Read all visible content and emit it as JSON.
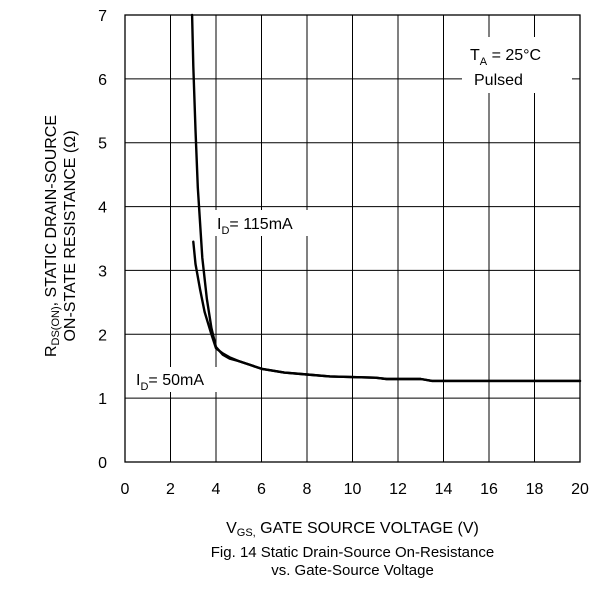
{
  "chart_data": {
    "type": "line",
    "x_label": {
      "main": "V",
      "sub": "GS,",
      "rest": " GATE SOURCE VOLTAGE (V)"
    },
    "y_label": {
      "line1_main": "R",
      "line1_sub": "DS(ON)",
      "line1_rest": ", STATIC DRAIN-SOURCE",
      "line2": "ON-STATE RESISTANCE (Ω)"
    },
    "caption": [
      "Fig. 14  Static Drain-Source On-Resistance",
      "vs. Gate-Source Voltage"
    ],
    "xlim": [
      0,
      20
    ],
    "ylim": [
      0,
      7
    ],
    "x_ticks": [
      "0",
      "2",
      "4",
      "6",
      "8",
      "10",
      "12",
      "14",
      "16",
      "18",
      "20"
    ],
    "y_ticks": [
      "0",
      "1",
      "2",
      "3",
      "4",
      "5",
      "6",
      "7"
    ],
    "grid": true,
    "annotations": {
      "condition_line1_main": "T",
      "condition_line1_sub": "A",
      "condition_line1_rest": " = 25°C",
      "condition_line2": "Pulsed"
    },
    "series": [
      {
        "name_main": "I",
        "name_sub": "D",
        "name_rest": "= 115mA",
        "x": [
          2.95,
          3.0,
          3.1,
          3.2,
          3.4,
          3.6,
          3.8,
          4.0,
          4.3,
          4.6,
          5.0,
          5.5,
          6.0,
          7.0,
          8.0,
          9.0,
          10.0,
          11.0,
          11.5,
          12.0,
          13.0,
          13.5,
          14.0,
          16.0,
          18.0,
          20.0
        ],
        "y": [
          7.0,
          6.2,
          5.2,
          4.3,
          3.2,
          2.55,
          2.1,
          1.8,
          1.68,
          1.62,
          1.58,
          1.52,
          1.46,
          1.4,
          1.37,
          1.34,
          1.33,
          1.32,
          1.3,
          1.3,
          1.3,
          1.27,
          1.27,
          1.27,
          1.27,
          1.27
        ]
      },
      {
        "name_main": "I",
        "name_sub": "D",
        "name_rest": "= 50mA",
        "x": [
          3.0,
          3.1,
          3.3,
          3.5,
          3.8,
          4.0,
          4.3,
          4.6,
          5.0,
          5.5,
          6.0,
          7.0,
          8.0,
          9.0,
          10.0,
          11.0,
          11.5,
          12.0,
          13.0,
          13.5,
          14.0,
          16.0,
          18.0,
          20.0
        ],
        "y": [
          3.45,
          3.1,
          2.7,
          2.35,
          2.0,
          1.78,
          1.7,
          1.64,
          1.58,
          1.52,
          1.46,
          1.4,
          1.37,
          1.34,
          1.33,
          1.32,
          1.3,
          1.3,
          1.3,
          1.27,
          1.27,
          1.27,
          1.27,
          1.27
        ]
      }
    ]
  }
}
